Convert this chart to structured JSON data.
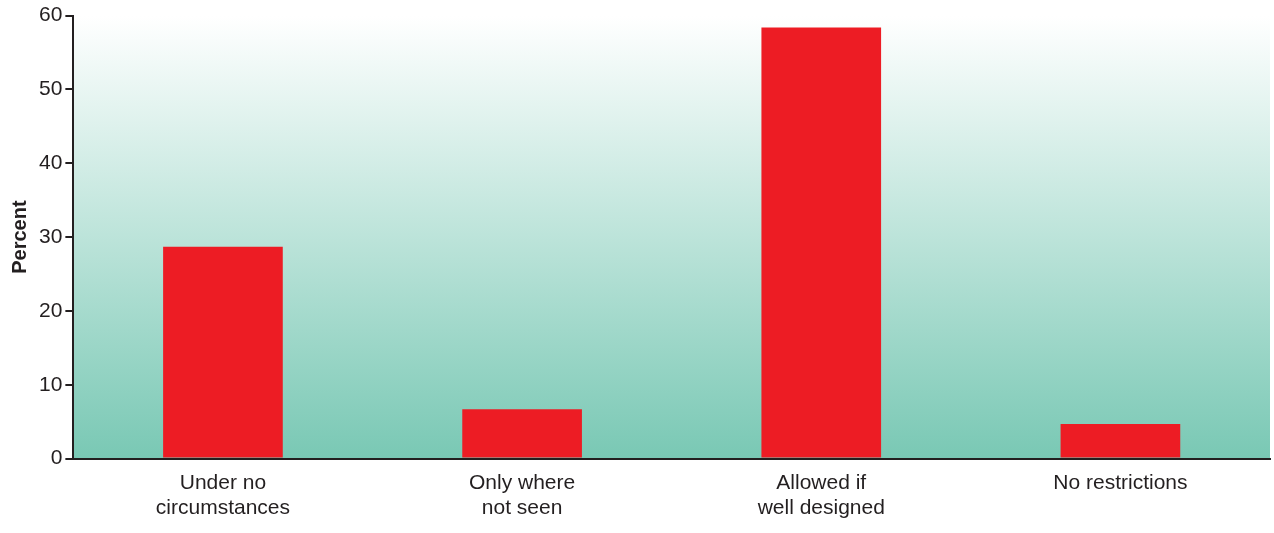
{
  "chart_data": {
    "type": "bar",
    "ylabel": "Percent",
    "categories": [
      "Under no\ncircumstances",
      "Only where\nnot seen",
      "Allowed if\nwell designed",
      "No restrictions"
    ],
    "values": [
      28.7,
      6.7,
      58.4,
      4.7
    ],
    "color": "#ed1c24",
    "ylim": [
      0,
      60
    ],
    "yticks": [
      0,
      10,
      20,
      30,
      40,
      50,
      60
    ],
    "grid": false,
    "legend": false
  }
}
